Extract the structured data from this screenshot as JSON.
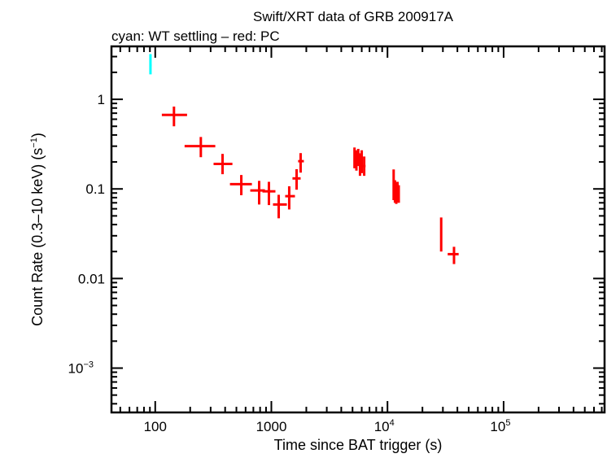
{
  "chart_data": {
    "type": "scatter",
    "title": "Swift/XRT data of GRB 200917A",
    "subtitle": "cyan: WT settling – red: PC",
    "xlabel": "Time since BAT trigger (s)",
    "ylabel": "Count Rate (0.3–10 keV) (s",
    "ylabel_sup": "−1",
    "ylabel_end": ")",
    "xscale": "log",
    "yscale": "log",
    "xlim": [
      42,
      740000
    ],
    "ylim": [
      0.00032,
      3.9
    ],
    "grid": false,
    "x_ticks": [
      {
        "value": 100,
        "label": "100",
        "sup": ""
      },
      {
        "value": 1000,
        "label": "1000",
        "sup": ""
      },
      {
        "value": 10000,
        "label": "10",
        "sup": "4"
      },
      {
        "value": 100000,
        "label": "10",
        "sup": "5"
      }
    ],
    "y_ticks": [
      {
        "value": 1,
        "label": "1",
        "sup": ""
      },
      {
        "value": 0.1,
        "label": "0.1",
        "sup": ""
      },
      {
        "value": 0.01,
        "label": "0.01",
        "sup": ""
      },
      {
        "value": 0.001,
        "label": "10",
        "sup": "−3"
      }
    ],
    "series": [
      {
        "mode": "WT settling",
        "color": "#00ffff",
        "points": [
          {
            "x": 91,
            "xlo": 89,
            "xhi": 93,
            "y": 2.4,
            "ylo": 1.9,
            "yhi": 3.2
          }
        ]
      },
      {
        "mode": "PC",
        "color": "#ff0000",
        "points": [
          {
            "x": 145,
            "xlo": 114,
            "xhi": 188,
            "y": 0.67,
            "ylo": 0.5,
            "yhi": 0.83
          },
          {
            "x": 247,
            "xlo": 179,
            "xhi": 329,
            "y": 0.3,
            "ylo": 0.226,
            "yhi": 0.38
          },
          {
            "x": 380,
            "xlo": 318,
            "xhi": 462,
            "y": 0.19,
            "ylo": 0.146,
            "yhi": 0.246
          },
          {
            "x": 551,
            "xlo": 440,
            "xhi": 680,
            "y": 0.113,
            "ylo": 0.085,
            "yhi": 0.143
          },
          {
            "x": 785,
            "xlo": 658,
            "xhi": 880,
            "y": 0.096,
            "ylo": 0.067,
            "yhi": 0.123
          },
          {
            "x": 953,
            "xlo": 838,
            "xhi": 1084,
            "y": 0.094,
            "ylo": 0.066,
            "yhi": 0.12
          },
          {
            "x": 1157,
            "xlo": 1033,
            "xhi": 1360,
            "y": 0.067,
            "ylo": 0.047,
            "yhi": 0.086
          },
          {
            "x": 1425,
            "xlo": 1315,
            "xhi": 1597,
            "y": 0.083,
            "ylo": 0.059,
            "yhi": 0.107
          },
          {
            "x": 1650,
            "xlo": 1520,
            "xhi": 1787,
            "y": 0.131,
            "ylo": 0.098,
            "yhi": 0.166
          },
          {
            "x": 1787,
            "xlo": 1700,
            "xhi": 1905,
            "y": 0.204,
            "ylo": 0.152,
            "yhi": 0.251
          },
          {
            "x": 5200,
            "xlo": 5150,
            "xhi": 5260,
            "y": 0.23,
            "ylo": 0.17,
            "yhi": 0.29
          },
          {
            "x": 5400,
            "xlo": 5330,
            "xhi": 5470,
            "y": 0.21,
            "ylo": 0.16,
            "yhi": 0.27
          },
          {
            "x": 5600,
            "xlo": 5530,
            "xhi": 5680,
            "y": 0.24,
            "ylo": 0.18,
            "yhi": 0.28
          },
          {
            "x": 5800,
            "xlo": 5720,
            "xhi": 5880,
            "y": 0.19,
            "ylo": 0.14,
            "yhi": 0.25
          },
          {
            "x": 6000,
            "xlo": 5920,
            "xhi": 6100,
            "y": 0.2,
            "ylo": 0.15,
            "yhi": 0.27
          },
          {
            "x": 6300,
            "xlo": 6150,
            "xhi": 6470,
            "y": 0.18,
            "ylo": 0.14,
            "yhi": 0.23
          },
          {
            "x": 11300,
            "xlo": 11100,
            "xhi": 11500,
            "y": 0.1,
            "ylo": 0.075,
            "yhi": 0.165
          },
          {
            "x": 11600,
            "xlo": 11400,
            "xhi": 11800,
            "y": 0.095,
            "ylo": 0.07,
            "yhi": 0.125
          },
          {
            "x": 11900,
            "xlo": 11700,
            "xhi": 12100,
            "y": 0.09,
            "ylo": 0.068,
            "yhi": 0.118
          },
          {
            "x": 12200,
            "xlo": 12000,
            "xhi": 12400,
            "y": 0.097,
            "ylo": 0.072,
            "yhi": 0.12
          },
          {
            "x": 12500,
            "xlo": 12300,
            "xhi": 12700,
            "y": 0.088,
            "ylo": 0.07,
            "yhi": 0.11
          },
          {
            "x": 29000,
            "xlo": 28500,
            "xhi": 29500,
            "y": 0.03,
            "ylo": 0.02,
            "yhi": 0.048
          },
          {
            "x": 37400,
            "xlo": 33000,
            "xhi": 41000,
            "y": 0.0187,
            "ylo": 0.0145,
            "yhi": 0.0226
          }
        ]
      }
    ]
  }
}
